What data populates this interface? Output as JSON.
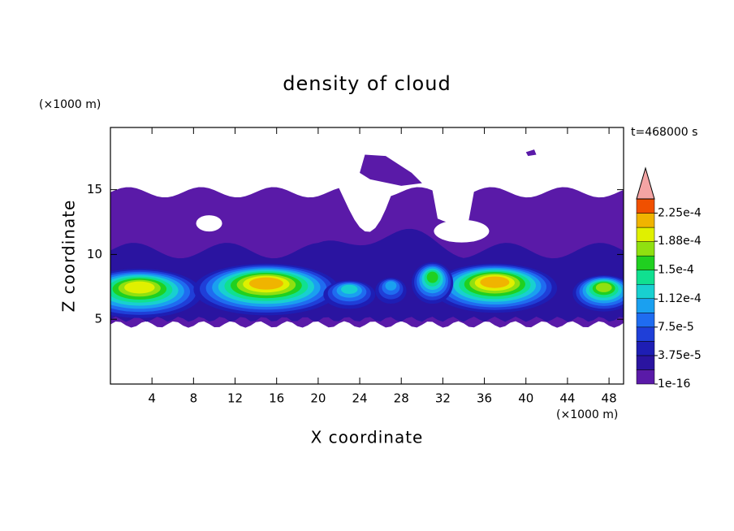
{
  "chart_data": {
    "type": "contour",
    "title": "density of cloud",
    "xlabel": "X coordinate",
    "ylabel": "Z coordinate",
    "xunit": "(×1000 m)",
    "yunit": "(×1000 m)",
    "annotation": "t=468000 s",
    "xlim": [
      0,
      49.4
    ],
    "ylim": [
      0,
      19.8
    ],
    "xticks": [
      4,
      8,
      12,
      16,
      20,
      24,
      28,
      32,
      36,
      40,
      44,
      48
    ],
    "yticks": [
      5,
      10,
      15
    ],
    "levels": [
      1e-16,
      1.875e-05,
      3.75e-05,
      5.625e-05,
      7.5e-05,
      9.375e-05,
      0.0001125,
      0.00013125,
      0.00015,
      0.00016875,
      0.0001875,
      0.00020625,
      0.000225,
      0.00024375
    ],
    "colors": [
      "#5a1aa8",
      "#2a14a0",
      "#1e1eb4",
      "#1f3fd8",
      "#1f6cf0",
      "#1aa0f0",
      "#18d0d0",
      "#10e090",
      "#20d020",
      "#90e010",
      "#e0f000",
      "#f0b400",
      "#f05000"
    ],
    "extend_color": "#f4a4a4",
    "colorbar_ticks": [
      {
        "value": 1e-16,
        "label": "1e-16"
      },
      {
        "value": 3.75e-05,
        "label": "3.75e-5"
      },
      {
        "value": 7.5e-05,
        "label": "7.5e-5"
      },
      {
        "value": 0.000112,
        "label": "1.12e-4"
      },
      {
        "value": 0.00015,
        "label": "1.5e-4"
      },
      {
        "value": 0.000188,
        "label": "1.88e-4"
      },
      {
        "value": 0.000225,
        "label": "2.25e-4"
      }
    ]
  }
}
